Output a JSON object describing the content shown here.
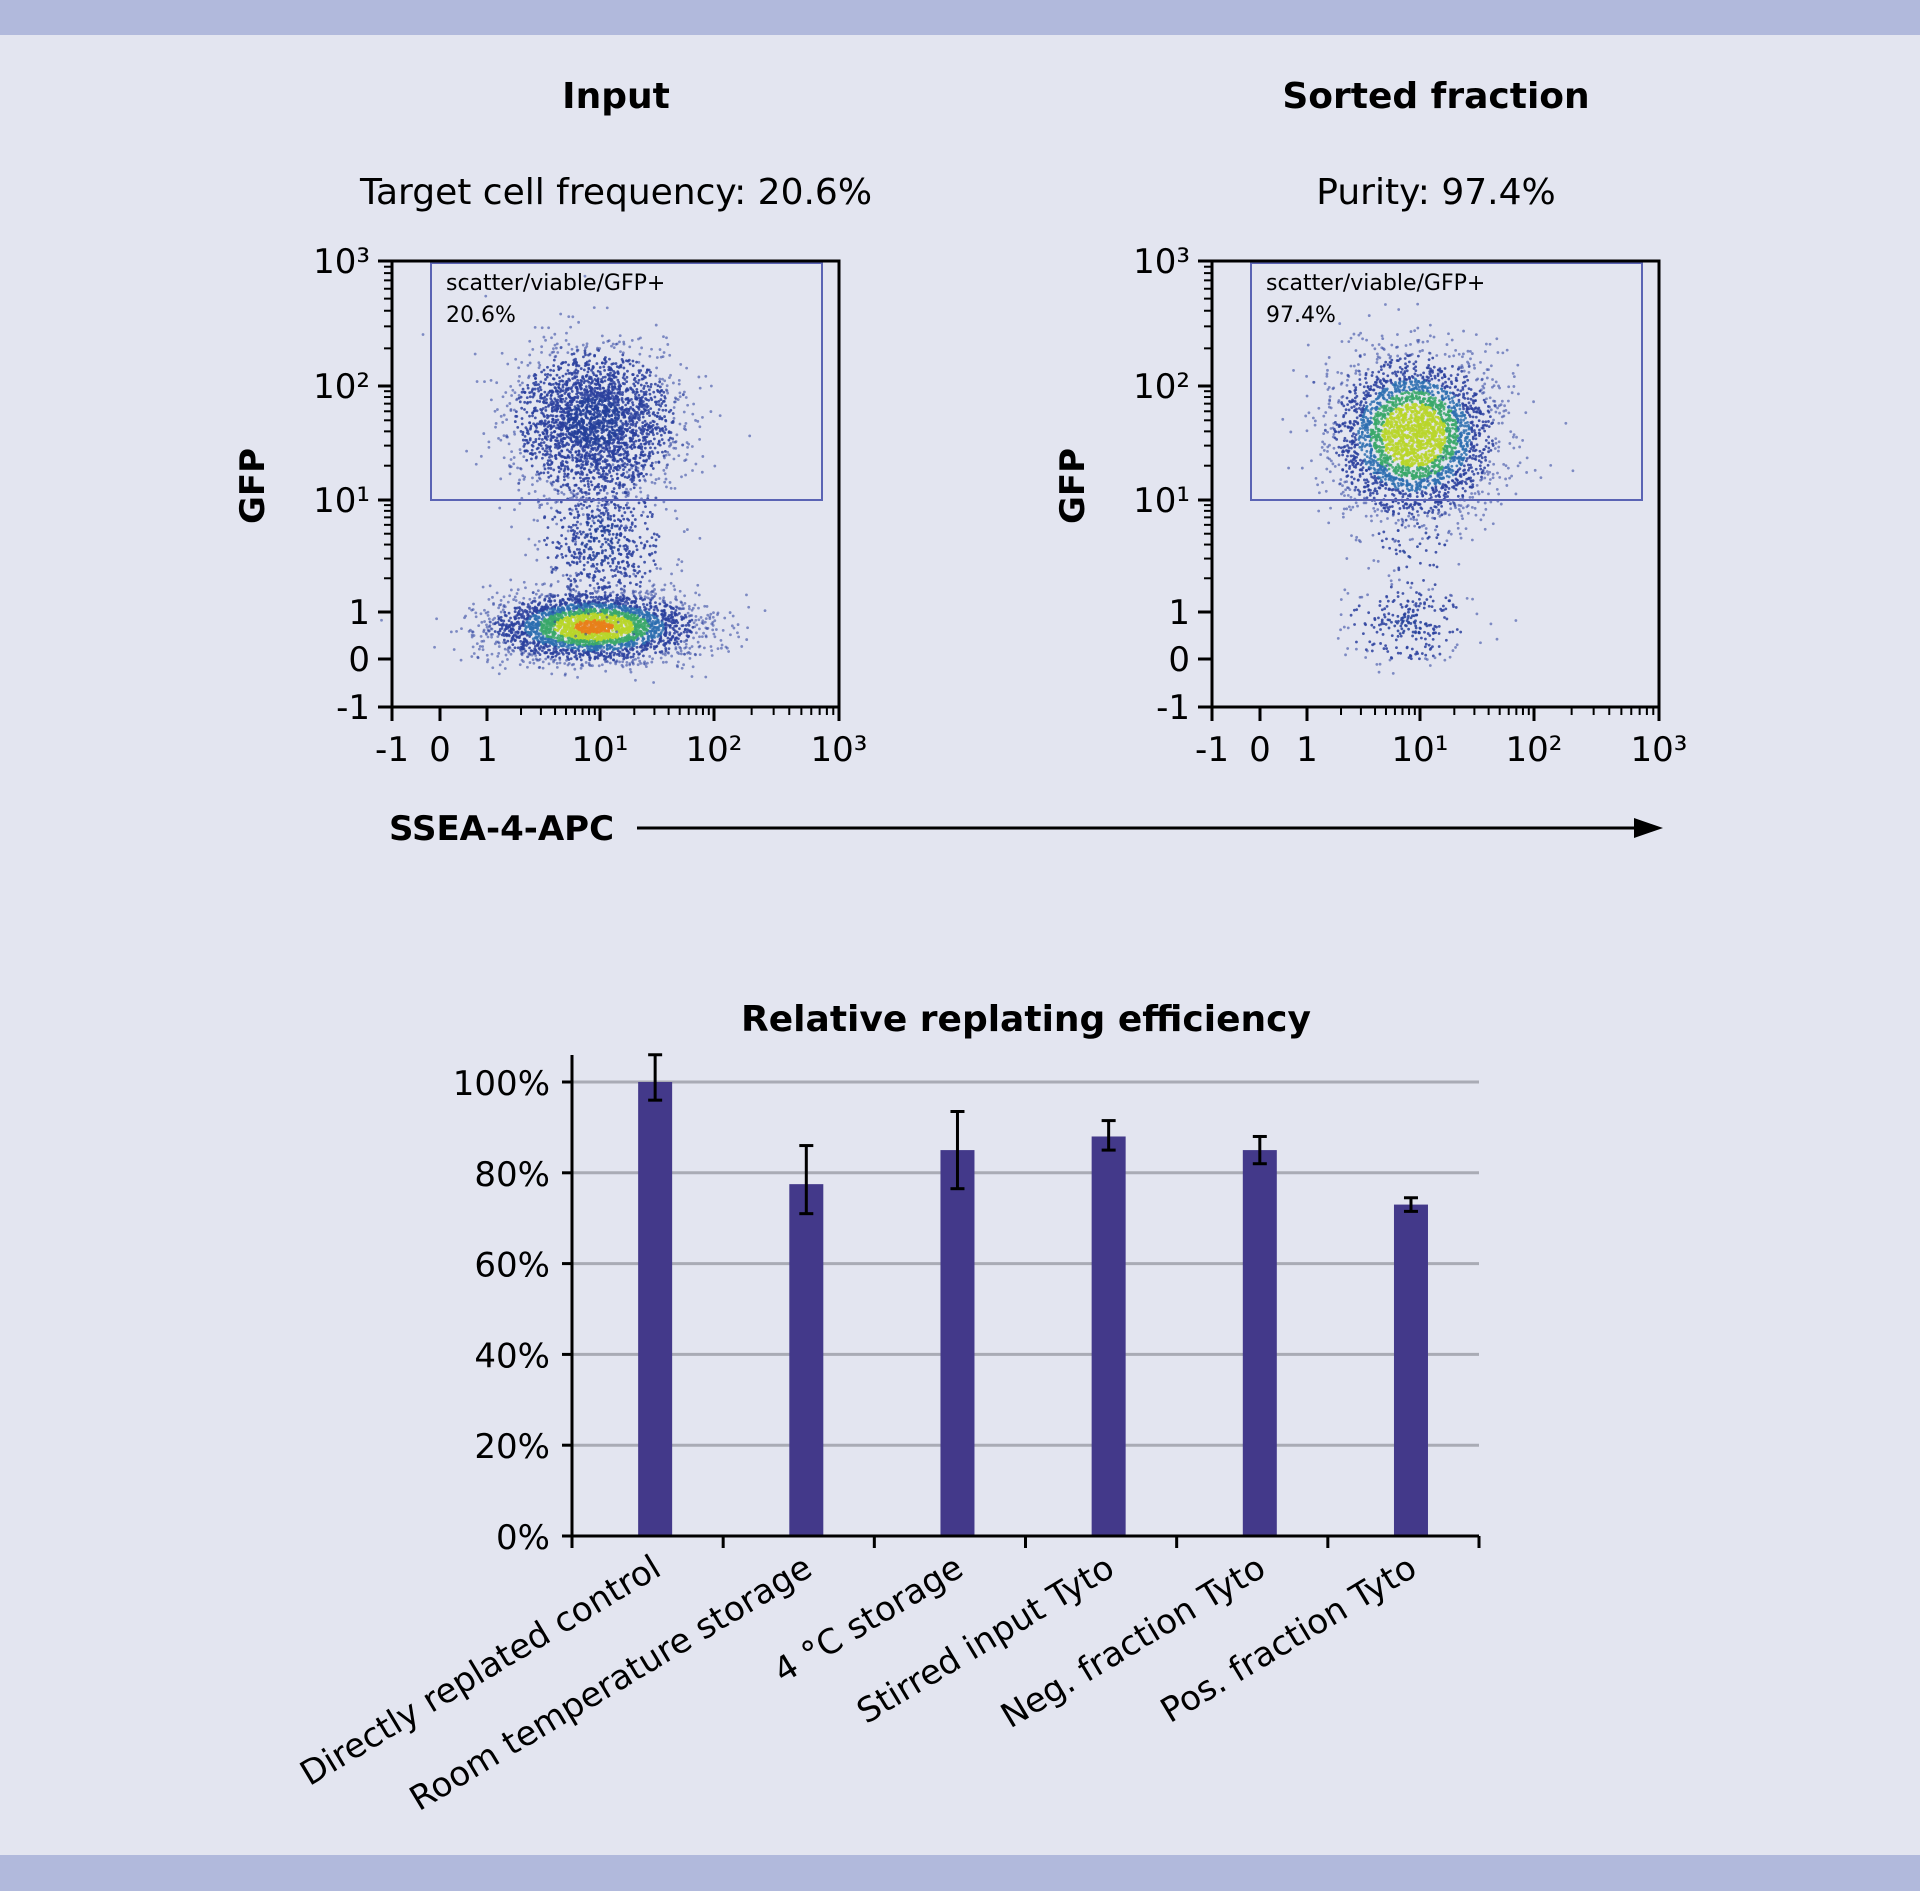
{
  "colors": {
    "background": "#e3e5f0",
    "banner": "#b1b9dc",
    "bar": "#43398a",
    "gate": "#5a63b4",
    "grid": "#a9abb5"
  },
  "chart_data": [
    {
      "type": "scatter",
      "title": "Input",
      "subtitle": "Target cell frequency: 20.6%",
      "xlabel": "SSEA-4-APC",
      "ylabel": "GFP",
      "x_ticks": [
        "-1",
        "0",
        "1",
        "10¹",
        "10²",
        "10³"
      ],
      "y_ticks": [
        "10³",
        "10²",
        "10¹",
        "1",
        "0",
        "-1"
      ],
      "scale": "biexponential",
      "gate": {
        "label": "scatter/viable/GFP+",
        "value": "20.6%",
        "y_min": 10,
        "y_max": 1000,
        "x_min": -0.3,
        "x_max": 700
      },
      "populations": [
        {
          "name_hidden": true,
          "x_center": 10,
          "y_center": 40
        },
        {
          "x_center": 10,
          "y_center": 0.3
        }
      ]
    },
    {
      "type": "scatter",
      "title": "Sorted fraction",
      "subtitle": "Purity: 97.4%",
      "xlabel": "SSEA-4-APC",
      "ylabel": "GFP",
      "x_ticks": [
        "-1",
        "0",
        "1",
        "10¹",
        "10²",
        "10³"
      ],
      "y_ticks": [
        "10³",
        "10²",
        "10¹",
        "1",
        "0",
        "-1"
      ],
      "scale": "biexponential",
      "gate": {
        "label": "scatter/viable/GFP+",
        "value": "97.4%",
        "y_min": 10,
        "y_max": 1000,
        "x_min": -0.3,
        "x_max": 700
      },
      "populations": [
        {
          "x_center": 10,
          "y_center": 40
        },
        {
          "x_center": 10,
          "y_center": 0.4
        }
      ]
    },
    {
      "type": "bar",
      "title": "Relative replating efficiency",
      "categories": [
        "Directly replated control",
        "Room temperature storage",
        "4 °C storage",
        "Stirred input Tyto",
        "Neg. fraction Tyto",
        "Pos. fraction Tyto"
      ],
      "values": [
        100,
        77.5,
        85,
        88,
        85,
        73
      ],
      "error_low": [
        96,
        71,
        76.5,
        85,
        82,
        71.5
      ],
      "error_high": [
        106,
        86,
        93.5,
        91.5,
        88,
        74.5
      ],
      "ylim": [
        0,
        100
      ],
      "y_ticks": [
        "0%",
        "20%",
        "40%",
        "60%",
        "80%",
        "100%"
      ],
      "grid": true
    }
  ]
}
